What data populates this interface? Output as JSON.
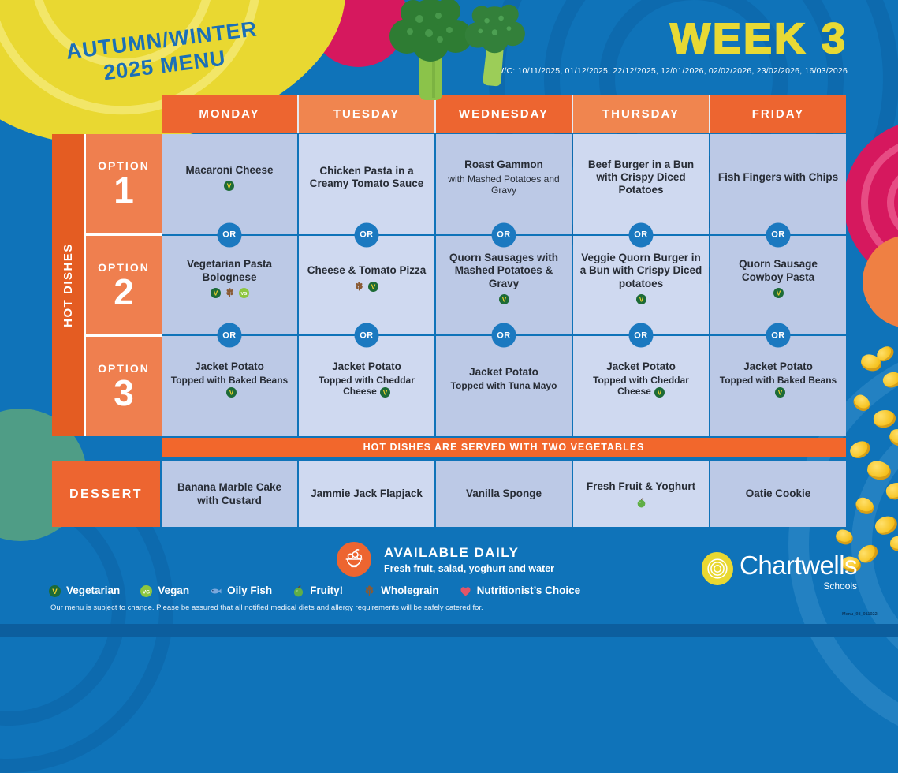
{
  "header": {
    "title_line1": "AUTUMN/WINTER",
    "title_line2": "2025 MENU",
    "week": "WEEK 3",
    "week_commencing": "W/C: 10/11/2025, 01/12/2025, 22/12/2025, 12/01/2026, 02/02/2026, 23/02/2026, 16/03/2026"
  },
  "days": [
    "MONDAY",
    "TUESDAY",
    "WEDNESDAY",
    "THURSDAY",
    "FRIDAY"
  ],
  "hot_dishes_label": "HOT DISHES",
  "or_label": "OR",
  "options": [
    {
      "label": "OPTION",
      "number": "1",
      "items": [
        {
          "title": "Macaroni Cheese",
          "icons": [
            "vegetarian"
          ]
        },
        {
          "title": "Chicken Pasta in a Creamy Tomato Sauce",
          "icons": []
        },
        {
          "title": "Roast Gammon",
          "subtitle": "with Mashed Potatoes and Gravy",
          "icons": []
        },
        {
          "title": "Beef Burger in a Bun with Crispy Diced Potatoes",
          "icons": []
        },
        {
          "title": "Fish Fingers with Chips",
          "icons": []
        }
      ]
    },
    {
      "label": "OPTION",
      "number": "2",
      "items": [
        {
          "title": "Vegetarian Pasta Bolognese",
          "icons": [
            "vegetarian",
            "wholegrain",
            "vegan"
          ]
        },
        {
          "title": "Cheese & Tomato Pizza",
          "icons": [
            "wholegrain",
            "vegetarian"
          ]
        },
        {
          "title": "Quorn Sausages with Mashed Potatoes & Gravy",
          "icons": [
            "vegetarian"
          ]
        },
        {
          "title": "Veggie Quorn Burger in a Bun with Crispy Diced potatoes",
          "icons": [
            "vegetarian"
          ]
        },
        {
          "title": "Quorn Sausage Cowboy Pasta",
          "icons": [
            "vegetarian"
          ]
        }
      ]
    },
    {
      "label": "OPTION",
      "number": "3",
      "items": [
        {
          "title": "Jacket Potato",
          "subtitle": "Topped with Baked Beans",
          "subtitle_icon": "vegetarian"
        },
        {
          "title": "Jacket Potato",
          "subtitle": "Topped with Cheddar Cheese",
          "subtitle_icon": "vegetarian"
        },
        {
          "title": "Jacket Potato",
          "subtitle": "Topped with Tuna Mayo"
        },
        {
          "title": "Jacket Potato",
          "subtitle": "Topped with Cheddar Cheese",
          "subtitle_icon": "vegetarian"
        },
        {
          "title": "Jacket Potato",
          "subtitle": "Topped with Baked Beans",
          "subtitle_icon": "vegetarian"
        }
      ]
    }
  ],
  "banner": "HOT DISHES ARE SERVED WITH TWO VEGETABLES",
  "dessert": {
    "label": "DESSERT",
    "items": [
      {
        "title": "Banana Marble Cake with Custard",
        "icons": []
      },
      {
        "title": "Jammie Jack Flapjack",
        "icons": []
      },
      {
        "title": "Vanilla Sponge",
        "icons": []
      },
      {
        "title": "Fresh Fruit & Yoghurt",
        "icons": [
          "fruity"
        ]
      },
      {
        "title": "Oatie Cookie",
        "icons": []
      }
    ]
  },
  "available_daily": {
    "title": "AVAILABLE DAILY",
    "subtitle": "Fresh fruit, salad, yoghurt and water"
  },
  "legend": [
    {
      "icon": "vegetarian",
      "label": "Vegetarian"
    },
    {
      "icon": "vegan",
      "label": "Vegan"
    },
    {
      "icon": "oily_fish",
      "label": "Oily Fish"
    },
    {
      "icon": "fruity",
      "label": "Fruity!"
    },
    {
      "icon": "wholegrain",
      "label": "Wholegrain"
    },
    {
      "icon": "nutritionist",
      "label": "Nutritionist’s Choice"
    }
  ],
  "footer": {
    "disclaimer": "Our menu is subject to change. Please be assured that all notified medical diets and allergy requirements will be safely catered for.",
    "logo_name": "Chartwells",
    "logo_sub": "Schools",
    "doc_code": "Menu_98_011022"
  },
  "colors": {
    "background": "#0f73b9",
    "orange_dark": "#ed6530",
    "orange_light": "#f0854f",
    "yellow": "#e8d934",
    "magenta": "#d6185e",
    "cell_dark": "#bcc9e6",
    "cell_light": "#cfd9f0",
    "or_circle": "#1b79c0",
    "text_dark": "#272c35"
  }
}
